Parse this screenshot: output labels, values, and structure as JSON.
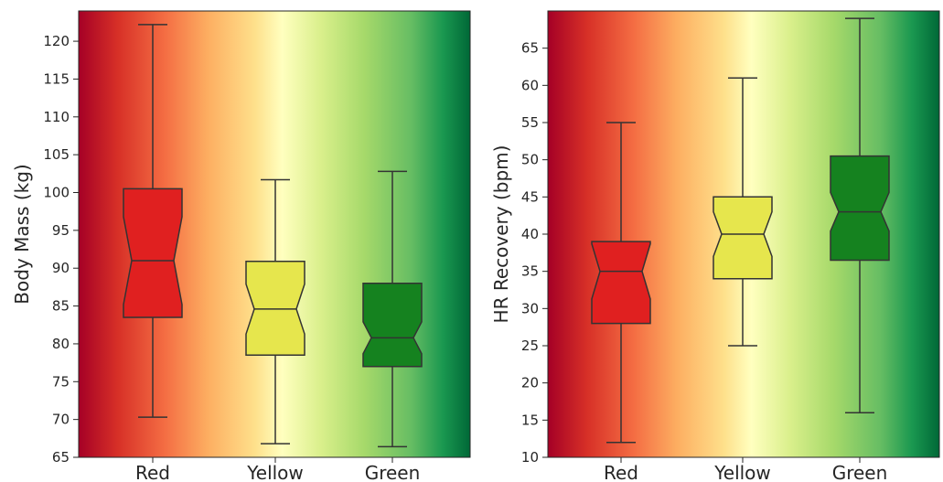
{
  "chart_data": [
    {
      "type": "box",
      "title": "",
      "xlabel": "",
      "ylabel": "Body Mass (kg)",
      "ylim": [
        65,
        124
      ],
      "yticks": [
        65,
        70,
        75,
        80,
        85,
        90,
        95,
        100,
        105,
        110,
        115,
        120
      ],
      "categories": [
        "Red",
        "Yellow",
        "Green"
      ],
      "notched": true,
      "background": "red-yellow-green horizontal gradient",
      "boxes": [
        {
          "category": "Red",
          "color": "#e02020",
          "whisker_low": 70.3,
          "q1": 83.5,
          "median": 91.0,
          "q3": 100.5,
          "whisker_high": 122.2,
          "notch_low": 85.2,
          "notch_high": 96.8
        },
        {
          "category": "Yellow",
          "color": "#e6e64d",
          "whisker_low": 66.8,
          "q1": 78.5,
          "median": 84.6,
          "q3": 90.9,
          "whisker_high": 101.7,
          "notch_low": 81.3,
          "notch_high": 87.9
        },
        {
          "category": "Green",
          "color": "#15821f",
          "whisker_low": 66.4,
          "q1": 77.0,
          "median": 80.8,
          "q3": 88.0,
          "whisker_high": 102.8,
          "notch_low": 78.7,
          "notch_high": 82.9
        }
      ]
    },
    {
      "type": "box",
      "title": "",
      "xlabel": "",
      "ylabel": "HR Recovery (bpm)",
      "ylim": [
        10,
        70
      ],
      "yticks": [
        10,
        15,
        20,
        25,
        30,
        35,
        40,
        45,
        50,
        55,
        60,
        65
      ],
      "categories": [
        "Red",
        "Yellow",
        "Green"
      ],
      "notched": true,
      "background": "red-yellow-green horizontal gradient",
      "boxes": [
        {
          "category": "Red",
          "color": "#e02020",
          "whisker_low": 12,
          "q1": 28,
          "median": 35,
          "q3": 39,
          "whisker_high": 55,
          "notch_low": 31.3,
          "notch_high": 38.7
        },
        {
          "category": "Yellow",
          "color": "#e6e64d",
          "whisker_low": 25,
          "q1": 34,
          "median": 40,
          "q3": 45,
          "whisker_high": 61,
          "notch_low": 37.0,
          "notch_high": 43.0
        },
        {
          "category": "Green",
          "color": "#15821f",
          "whisker_low": 16,
          "q1": 36.5,
          "median": 43,
          "q3": 50.5,
          "whisker_high": 69,
          "notch_low": 40.4,
          "notch_high": 45.6
        }
      ]
    }
  ]
}
